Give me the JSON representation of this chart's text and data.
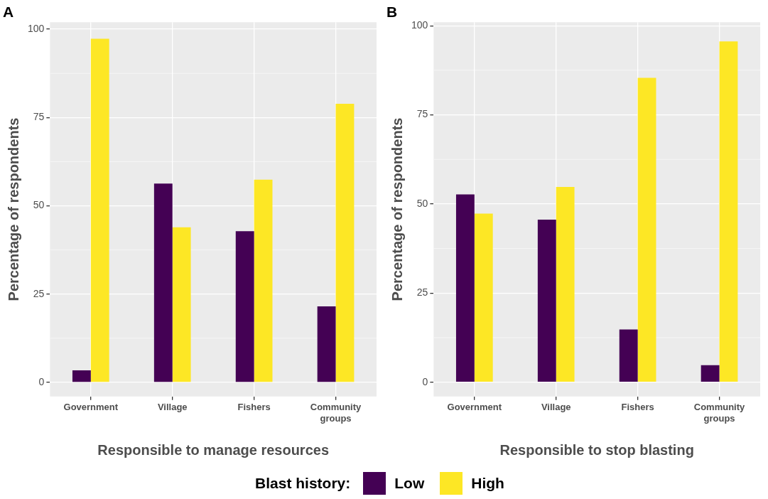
{
  "chart_data": [
    {
      "type": "bar",
      "title": "A",
      "xlabel": "Responsible to manage resources",
      "ylabel": "Percentage of respondents",
      "categories": [
        "Government",
        "Village",
        "Fishers",
        "Community groups"
      ],
      "series": [
        {
          "name": "Low",
          "color": "#440154",
          "values": [
            3.4,
            56.3,
            42.8,
            21.5
          ]
        },
        {
          "name": "High",
          "color": "#fde725",
          "values": [
            97.3,
            43.9,
            57.4,
            78.9
          ]
        }
      ],
      "ylim": [
        -4,
        102
      ],
      "yticks": [
        0,
        25,
        50,
        75,
        100
      ],
      "grid": true,
      "legend": "bottom",
      "legend_title": "Blast history:"
    },
    {
      "type": "bar",
      "title": "B",
      "xlabel": "Responsible to stop blasting",
      "ylabel": "Percentage of respondents",
      "categories": [
        "Government",
        "Village",
        "Fishers",
        "Community groups"
      ],
      "series": [
        {
          "color": "#440154",
          "values": [
            52.7,
            45.6,
            14.8,
            4.8
          ]
        },
        {
          "color": "#fde725",
          "values": [
            47.3,
            54.8,
            85.4,
            95.6
          ]
        }
      ],
      "ylim": [
        -4,
        101
      ],
      "yticks": [
        0,
        25,
        50,
        75,
        100
      ],
      "grid": true,
      "legend": false
    }
  ]
}
